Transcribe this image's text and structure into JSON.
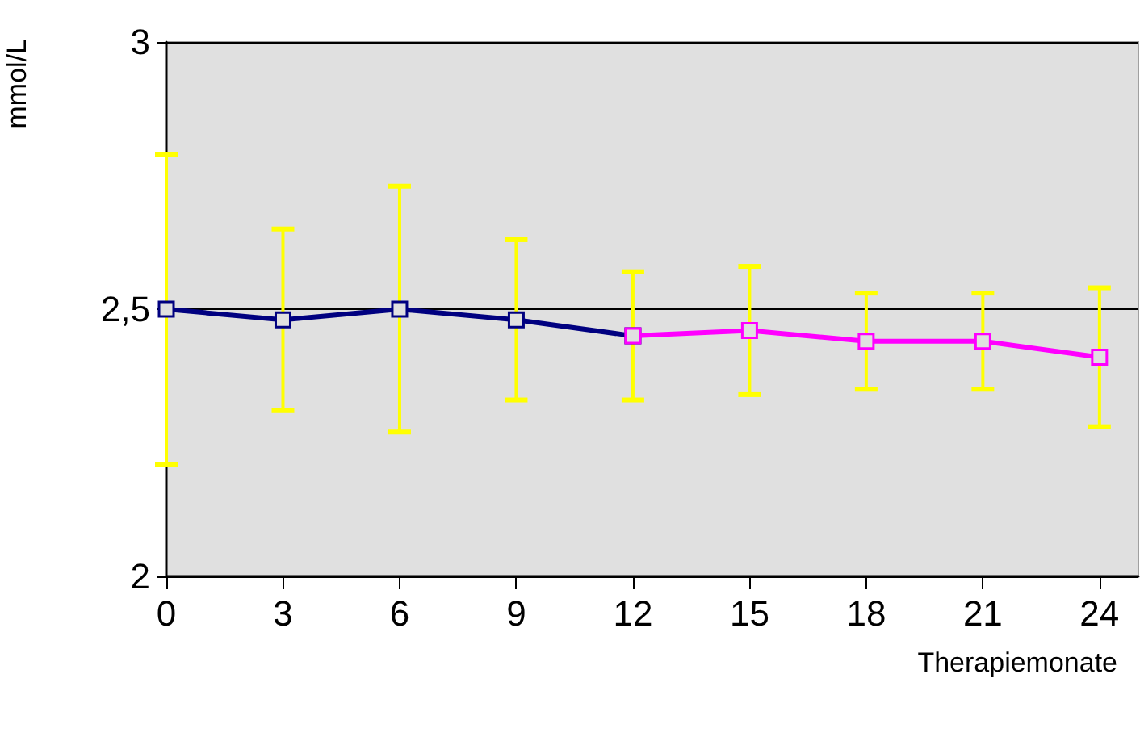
{
  "chart_data": {
    "type": "line",
    "xlabel": "Therapiemonate",
    "ylabel": "mmol/L",
    "xlim": [
      0,
      25
    ],
    "xticks": [
      0,
      3,
      6,
      9,
      12,
      15,
      18,
      21,
      24
    ],
    "ylim": [
      2,
      3
    ],
    "yticks": [
      2,
      {
        "value": 2.5,
        "label": "2,5"
      },
      3
    ],
    "grid": "y",
    "marker": "square",
    "line_style": "solid",
    "series": [
      {
        "color": "#000080",
        "x": [
          0,
          3,
          6,
          9,
          12
        ],
        "values": [
          2.5,
          2.48,
          2.5,
          2.48,
          2.45
        ],
        "errors": [
          [
            2.21,
            2.79
          ],
          [
            2.31,
            2.65
          ],
          [
            2.27,
            2.73
          ],
          [
            2.33,
            2.63
          ],
          null
        ]
      },
      {
        "color": "#ff00ff",
        "x": [
          12,
          15,
          18,
          21,
          24
        ],
        "values": [
          2.45,
          2.46,
          2.44,
          2.44,
          2.41
        ],
        "errors": [
          [
            2.33,
            2.57
          ],
          [
            2.34,
            2.58
          ],
          [
            2.35,
            2.53
          ],
          [
            2.35,
            2.53
          ],
          [
            2.28,
            2.54
          ]
        ]
      }
    ]
  }
}
